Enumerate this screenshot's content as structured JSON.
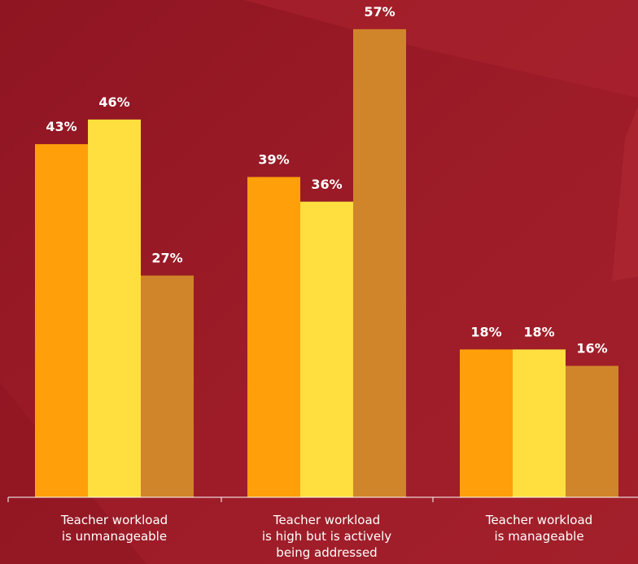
{
  "colors": {
    "background": "#991b26",
    "axis": "#ffffff",
    "series": [
      "#ff9f0a",
      "#ffdf3f",
      "#d0852a"
    ],
    "labels": "#ffffff"
  },
  "chart_data": {
    "type": "bar",
    "title": "",
    "xlabel": "",
    "ylabel": "",
    "grid": false,
    "ylim": [
      0,
      57
    ],
    "categories": [
      [
        "Teacher workload",
        "is unmanageable"
      ],
      [
        "Teacher workload",
        "is high but is actively",
        "being addressed"
      ],
      [
        "Teacher workload",
        "is manageable"
      ]
    ],
    "series": [
      {
        "values": [
          43,
          39,
          18
        ]
      },
      {
        "values": [
          46,
          36,
          18
        ]
      },
      {
        "values": [
          27,
          57,
          16
        ]
      }
    ],
    "value_labels": [
      [
        "43%",
        "39%",
        "18%"
      ],
      [
        "46%",
        "36%",
        "18%"
      ],
      [
        "27%",
        "57%",
        "16%"
      ]
    ]
  }
}
